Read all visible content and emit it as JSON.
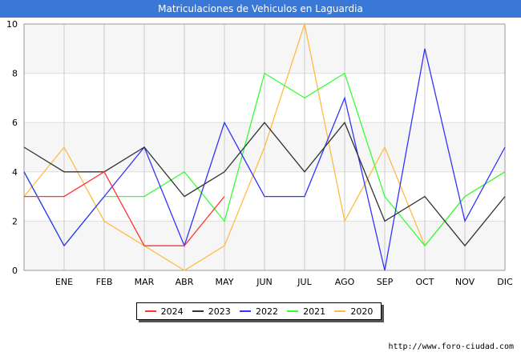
{
  "header": {
    "title": "Matriculaciones de Vehiculos en Laguardia"
  },
  "footer": {
    "url": "http://www.foro-ciudad.com"
  },
  "chart_data": {
    "type": "line",
    "title": "Matriculaciones de Vehiculos en Laguardia",
    "x_ticks": [
      "",
      "ENE",
      "FEB",
      "MAR",
      "ABR",
      "MAY",
      "JUN",
      "JUL",
      "AGO",
      "SEP",
      "OCT",
      "NOV",
      "DIC"
    ],
    "y_ticks": [
      0,
      2,
      4,
      6,
      8,
      10
    ],
    "ylim": [
      0,
      10
    ],
    "grid": true,
    "legend_position": "bottom",
    "series": [
      {
        "name": "2024",
        "color": "#ff3333",
        "values": [
          3,
          3,
          4,
          1,
          1,
          3
        ]
      },
      {
        "name": "2023",
        "color": "#333333",
        "values": [
          5,
          4,
          4,
          5,
          3,
          4,
          6,
          4,
          6,
          2,
          3,
          1,
          3
        ]
      },
      {
        "name": "2022",
        "color": "#3333ff",
        "values": [
          4,
          1,
          3,
          5,
          1,
          6,
          3,
          3,
          7,
          0,
          9,
          2,
          5
        ]
      },
      {
        "name": "2021",
        "color": "#33ff33",
        "values": [
          4,
          1,
          3,
          3,
          4,
          2,
          8,
          7,
          8,
          3,
          1,
          3,
          4
        ]
      },
      {
        "name": "2020",
        "color": "#ffbb44",
        "values": [
          3,
          5,
          2,
          1,
          0,
          1,
          5,
          10,
          2,
          5,
          1,
          3,
          4
        ]
      }
    ]
  }
}
